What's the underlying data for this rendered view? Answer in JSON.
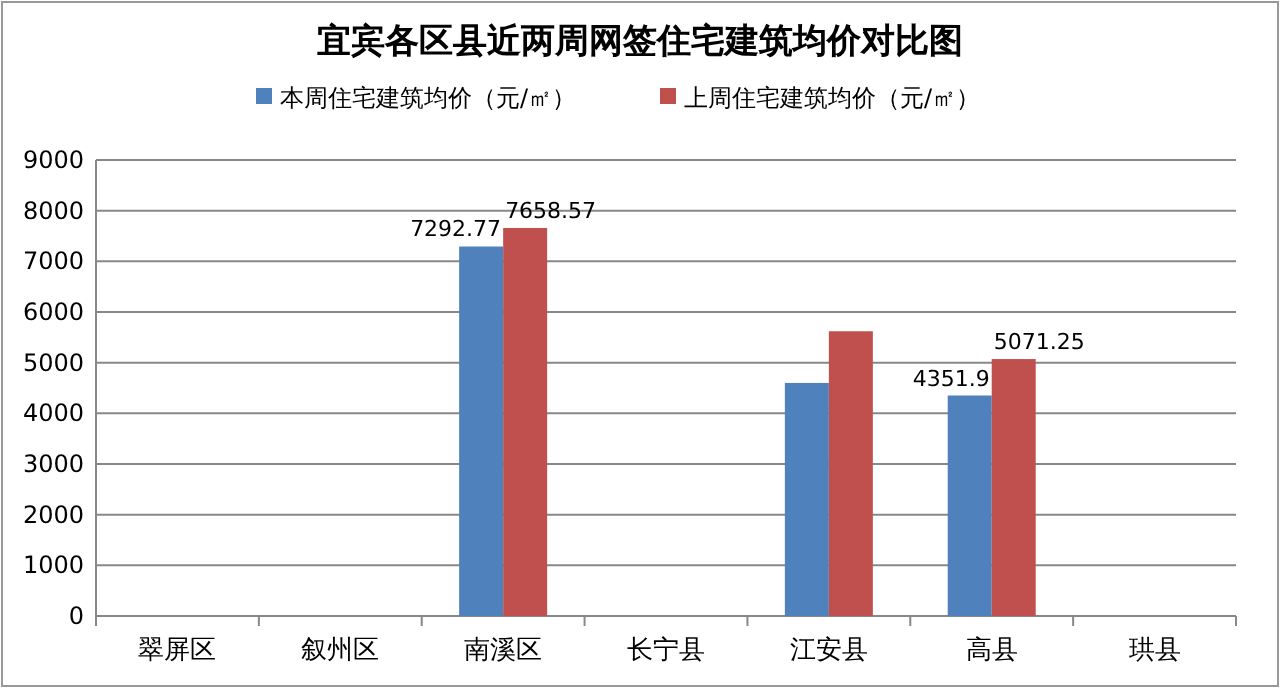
{
  "chart_data": {
    "type": "bar",
    "title": "宜宾各区县近两周网签住宅建筑均价对比图",
    "categories": [
      "翠屏区",
      "叙州区",
      "南溪区",
      "长宁县",
      "江安县",
      "高县",
      "珙县"
    ],
    "series": [
      {
        "name": "本周住宅建筑均价（元/㎡）",
        "color": "#4f81bd",
        "values": [
          null,
          null,
          7292.77,
          null,
          4600,
          4351.9,
          null
        ],
        "value_labels": [
          null,
          null,
          "7292.77",
          null,
          null,
          "4351.9",
          null
        ]
      },
      {
        "name": "上周住宅建筑均价（元/㎡）",
        "color": "#c0504d",
        "values": [
          null,
          null,
          7658.57,
          null,
          5620,
          5071.25,
          null
        ],
        "value_labels": [
          null,
          null,
          "7658.57",
          null,
          null,
          "5071.25",
          null
        ]
      }
    ],
    "ylim": [
      0,
      9000
    ],
    "yticks": [
      0,
      1000,
      2000,
      3000,
      4000,
      5000,
      6000,
      7000,
      8000,
      9000
    ],
    "grid": "y",
    "legend": "top"
  }
}
